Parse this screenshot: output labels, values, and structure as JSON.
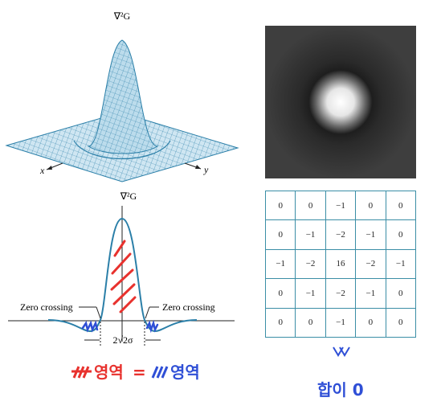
{
  "top_plot": {
    "label": "∇²G",
    "x_axis": "x",
    "y_axis": "y"
  },
  "profile_plot": {
    "label": "∇²G",
    "left_annotation": "Zero crossing",
    "right_annotation": "Zero crossing",
    "width_label": "2√2σ"
  },
  "kernel": {
    "rows": [
      [
        "0",
        "0",
        "−1",
        "0",
        "0"
      ],
      [
        "0",
        "−1",
        "−2",
        "−1",
        "0"
      ],
      [
        "−1",
        "−2",
        "16",
        "−2",
        "−1"
      ],
      [
        "0",
        "−1",
        "−2",
        "−1",
        "0"
      ],
      [
        "0",
        "0",
        "−1",
        "0",
        "0"
      ]
    ]
  },
  "handwritten_notes": {
    "equation_left": "영역",
    "equals": "=",
    "equation_right": "영역",
    "sum_note": "합이 0"
  }
}
